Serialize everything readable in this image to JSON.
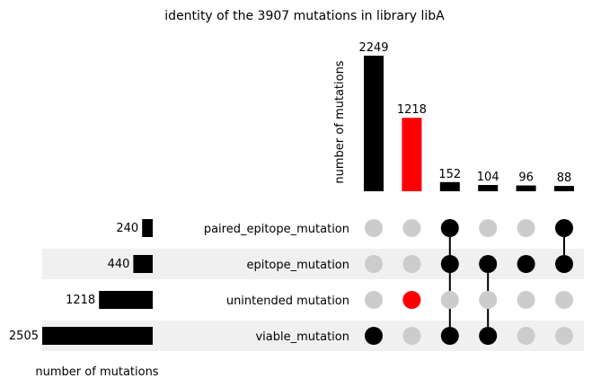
{
  "chart_data": {
    "type": "upset",
    "title": "identity of the 3907 mutations in library libA",
    "intersection_ylabel": "number of mutations",
    "set_size_xlabel": "number of mutations",
    "sets": [
      {
        "name": "paired_epitope_mutation",
        "size": 240
      },
      {
        "name": "epitope_mutation",
        "size": 440
      },
      {
        "name": "unintended mutation",
        "size": 1218
      },
      {
        "name": "viable_mutation",
        "size": 2505
      }
    ],
    "intersections": [
      {
        "sets": [
          "viable_mutation"
        ],
        "count": 2249,
        "color": "#000000"
      },
      {
        "sets": [
          "unintended mutation"
        ],
        "count": 1218,
        "color": "#ff0000"
      },
      {
        "sets": [
          "paired_epitope_mutation",
          "epitope_mutation",
          "viable_mutation"
        ],
        "count": 152,
        "color": "#000000"
      },
      {
        "sets": [
          "epitope_mutation",
          "viable_mutation"
        ],
        "count": 104,
        "color": "#000000"
      },
      {
        "sets": [
          "epitope_mutation"
        ],
        "count": 96,
        "color": "#000000"
      },
      {
        "sets": [
          "paired_epitope_mutation",
          "epitope_mutation"
        ],
        "count": 88,
        "color": "#000000"
      }
    ],
    "colors": {
      "active": "#000000",
      "highlight": "#ff0000",
      "inactive": "#cccccc",
      "row_shade": "#f0f0f0"
    }
  }
}
